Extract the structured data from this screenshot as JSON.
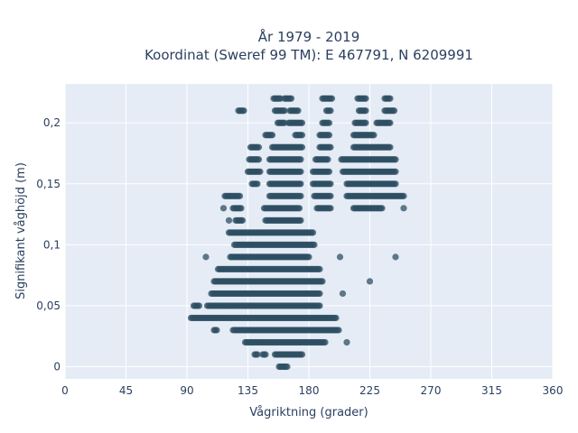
{
  "chart_data": {
    "type": "scatter",
    "title_line1": "År 1979 - 2019",
    "title_line2": "Koordinat (Sweref 99 TM): E 467791, N 6209991",
    "xlabel": "Vågriktning (grader)",
    "ylabel": "Signifikant våghöjd (m)",
    "xlim": [
      0,
      360
    ],
    "ylim": [
      -0.01,
      0.232
    ],
    "xticks": [
      0,
      45,
      90,
      135,
      180,
      225,
      270,
      315,
      360
    ],
    "xtick_labels": [
      "0",
      "45",
      "90",
      "135",
      "180",
      "225",
      "270",
      "315",
      "360"
    ],
    "yticks": [
      0,
      0.05,
      0.1,
      0.15,
      0.2
    ],
    "ytick_labels": [
      "0",
      "0,05",
      "0,1",
      "0,15",
      "0,2"
    ],
    "grid": true,
    "point_color": "#2f4f63",
    "plot_background": "#e5ecf6",
    "bands": [
      {
        "y": 0.0,
        "ranges": [
          [
            158,
            164
          ]
        ]
      },
      {
        "y": 0.01,
        "ranges": [
          [
            140,
            142
          ],
          [
            146,
            148
          ],
          [
            155,
            175
          ]
        ]
      },
      {
        "y": 0.02,
        "ranges": [
          [
            133,
            192
          ]
        ],
        "extra_x": [
          208
        ]
      },
      {
        "y": 0.03,
        "ranges": [
          [
            110,
            112
          ],
          [
            124,
            202
          ]
        ]
      },
      {
        "y": 0.04,
        "ranges": [
          [
            93,
            200
          ]
        ]
      },
      {
        "y": 0.05,
        "ranges": [
          [
            95,
            99
          ],
          [
            105,
            188
          ]
        ]
      },
      {
        "y": 0.06,
        "ranges": [
          [
            108,
            188
          ]
        ],
        "extra_x": [
          205
        ]
      },
      {
        "y": 0.07,
        "ranges": [
          [
            110,
            190
          ]
        ],
        "extra_x": [
          225
        ]
      },
      {
        "y": 0.08,
        "ranges": [
          [
            113,
            188
          ]
        ]
      },
      {
        "y": 0.09,
        "ranges": [
          [
            122,
            180
          ]
        ],
        "extra_x": [
          104,
          203,
          244
        ]
      },
      {
        "y": 0.1,
        "ranges": [
          [
            125,
            184
          ]
        ]
      },
      {
        "y": 0.11,
        "ranges": [
          [
            121,
            183
          ]
        ]
      },
      {
        "y": 0.12,
        "ranges": [
          [
            126,
            131
          ],
          [
            148,
            174
          ]
        ],
        "extra_x": [
          121
        ]
      },
      {
        "y": 0.13,
        "ranges": [
          [
            124,
            130
          ],
          [
            147,
            173
          ],
          [
            186,
            196
          ],
          [
            213,
            234
          ]
        ],
        "extra_x": [
          117,
          250
        ]
      },
      {
        "y": 0.14,
        "ranges": [
          [
            118,
            129
          ],
          [
            151,
            174
          ],
          [
            184,
            196
          ],
          [
            208,
            250
          ]
        ]
      },
      {
        "y": 0.15,
        "ranges": [
          [
            138,
            142
          ],
          [
            151,
            174
          ],
          [
            183,
            196
          ],
          [
            208,
            244
          ]
        ]
      },
      {
        "y": 0.16,
        "ranges": [
          [
            135,
            144
          ],
          [
            151,
            174
          ],
          [
            183,
            195
          ],
          [
            205,
            244
          ]
        ]
      },
      {
        "y": 0.17,
        "ranges": [
          [
            136,
            143
          ],
          [
            151,
            174
          ],
          [
            185,
            194
          ],
          [
            204,
            244
          ]
        ]
      },
      {
        "y": 0.18,
        "ranges": [
          [
            137,
            143
          ],
          [
            153,
            175
          ],
          [
            188,
            196
          ],
          [
            213,
            240
          ]
        ]
      },
      {
        "y": 0.19,
        "ranges": [
          [
            148,
            153
          ],
          [
            170,
            175
          ],
          [
            188,
            195
          ],
          [
            213,
            228
          ]
        ]
      },
      {
        "y": 0.2,
        "ranges": [
          [
            157,
            162
          ],
          [
            165,
            175
          ],
          [
            190,
            195
          ],
          [
            214,
            222
          ],
          [
            230,
            240
          ]
        ]
      },
      {
        "y": 0.21,
        "ranges": [
          [
            128,
            132
          ],
          [
            155,
            162
          ],
          [
            166,
            172
          ],
          [
            193,
            196
          ],
          [
            217,
            222
          ],
          [
            236,
            243
          ]
        ]
      },
      {
        "y": 0.22,
        "ranges": [
          [
            154,
            159
          ],
          [
            162,
            167
          ],
          [
            190,
            197
          ],
          [
            216,
            222
          ],
          [
            236,
            240
          ]
        ]
      }
    ]
  }
}
